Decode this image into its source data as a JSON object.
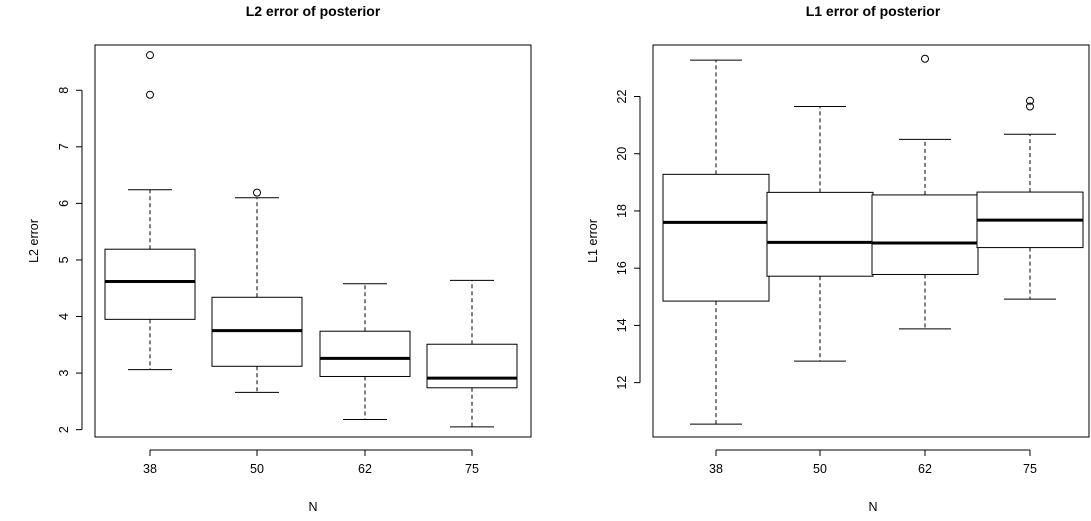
{
  "chart_data": [
    {
      "type": "box",
      "title": "L2 error of posterior",
      "xlabel": "N",
      "ylabel": "L2 error",
      "ylim": [
        1.87,
        8.8
      ],
      "y_ticks": [
        2,
        3,
        4,
        5,
        6,
        7,
        8
      ],
      "categories": [
        "38",
        "50",
        "62",
        "75"
      ],
      "boxes": [
        {
          "category": "38",
          "whisker_low": 3.06,
          "q1": 3.95,
          "median": 4.62,
          "q3": 5.19,
          "whisker_high": 6.24,
          "outliers": [
            7.92,
            8.62
          ]
        },
        {
          "category": "50",
          "whisker_low": 2.66,
          "q1": 3.12,
          "median": 3.75,
          "q3": 4.34,
          "whisker_high": 6.1,
          "outliers": [
            6.19
          ]
        },
        {
          "category": "62",
          "whisker_low": 2.18,
          "q1": 2.94,
          "median": 3.26,
          "q3": 3.74,
          "whisker_high": 4.58,
          "outliers": []
        },
        {
          "category": "75",
          "whisker_low": 2.05,
          "q1": 2.74,
          "median": 2.91,
          "q3": 3.51,
          "whisker_high": 4.64,
          "outliers": []
        }
      ]
    },
    {
      "type": "box",
      "title": "L1 error of posterior",
      "xlabel": "N",
      "ylabel": "L1 error",
      "ylim": [
        10.1,
        23.8
      ],
      "y_ticks": [
        12,
        14,
        16,
        18,
        20,
        22
      ],
      "categories": [
        "38",
        "50",
        "62",
        "75"
      ],
      "boxes": [
        {
          "category": "38",
          "whisker_low": 10.55,
          "q1": 14.85,
          "median": 17.6,
          "q3": 19.28,
          "whisker_high": 23.27,
          "outliers": []
        },
        {
          "category": "50",
          "whisker_low": 12.75,
          "q1": 15.72,
          "median": 16.9,
          "q3": 18.65,
          "whisker_high": 21.65,
          "outliers": []
        },
        {
          "category": "62",
          "whisker_low": 13.88,
          "q1": 15.78,
          "median": 16.88,
          "q3": 18.56,
          "whisker_high": 20.5,
          "outliers": [
            23.32
          ]
        },
        {
          "category": "75",
          "whisker_low": 14.92,
          "q1": 16.72,
          "median": 17.68,
          "q3": 18.66,
          "whisker_high": 20.68,
          "outliers": [
            21.65,
            21.85
          ]
        }
      ]
    }
  ]
}
